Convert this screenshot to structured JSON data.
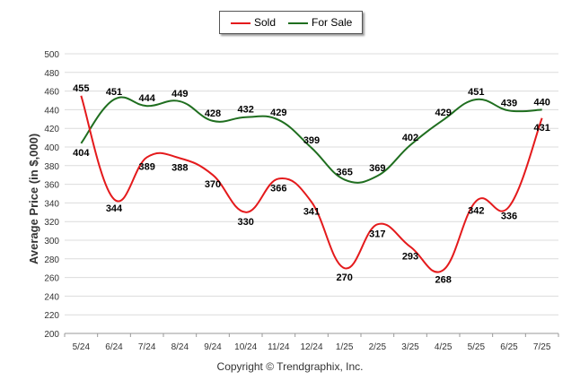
{
  "chart_data": {
    "type": "line",
    "categories": [
      "5/24",
      "6/24",
      "7/24",
      "8/24",
      "9/24",
      "10/24",
      "11/24",
      "12/24",
      "1/25",
      "2/25",
      "3/25",
      "4/25",
      "5/25",
      "6/25",
      "7/25"
    ],
    "series": [
      {
        "name": "Sold",
        "color": "#e41a1c",
        "values": [
          455,
          344,
          389,
          388,
          370,
          330,
          366,
          341,
          270,
          317,
          293,
          268,
          342,
          336,
          431
        ]
      },
      {
        "name": "For Sale",
        "color": "#1f6e1f",
        "values": [
          404,
          451,
          444,
          449,
          428,
          432,
          429,
          399,
          365,
          369,
          402,
          429,
          451,
          439,
          440
        ]
      }
    ],
    "ylabel": "Average Price (in $,000)",
    "ylim": [
      200,
      500
    ],
    "yticks": [
      200,
      220,
      240,
      260,
      280,
      300,
      320,
      340,
      360,
      380,
      400,
      420,
      440,
      460,
      480,
      500
    ],
    "grid": true,
    "legend_position": "top-center"
  },
  "footer": {
    "copyright": "Copyright © Trendgraphix, Inc."
  }
}
